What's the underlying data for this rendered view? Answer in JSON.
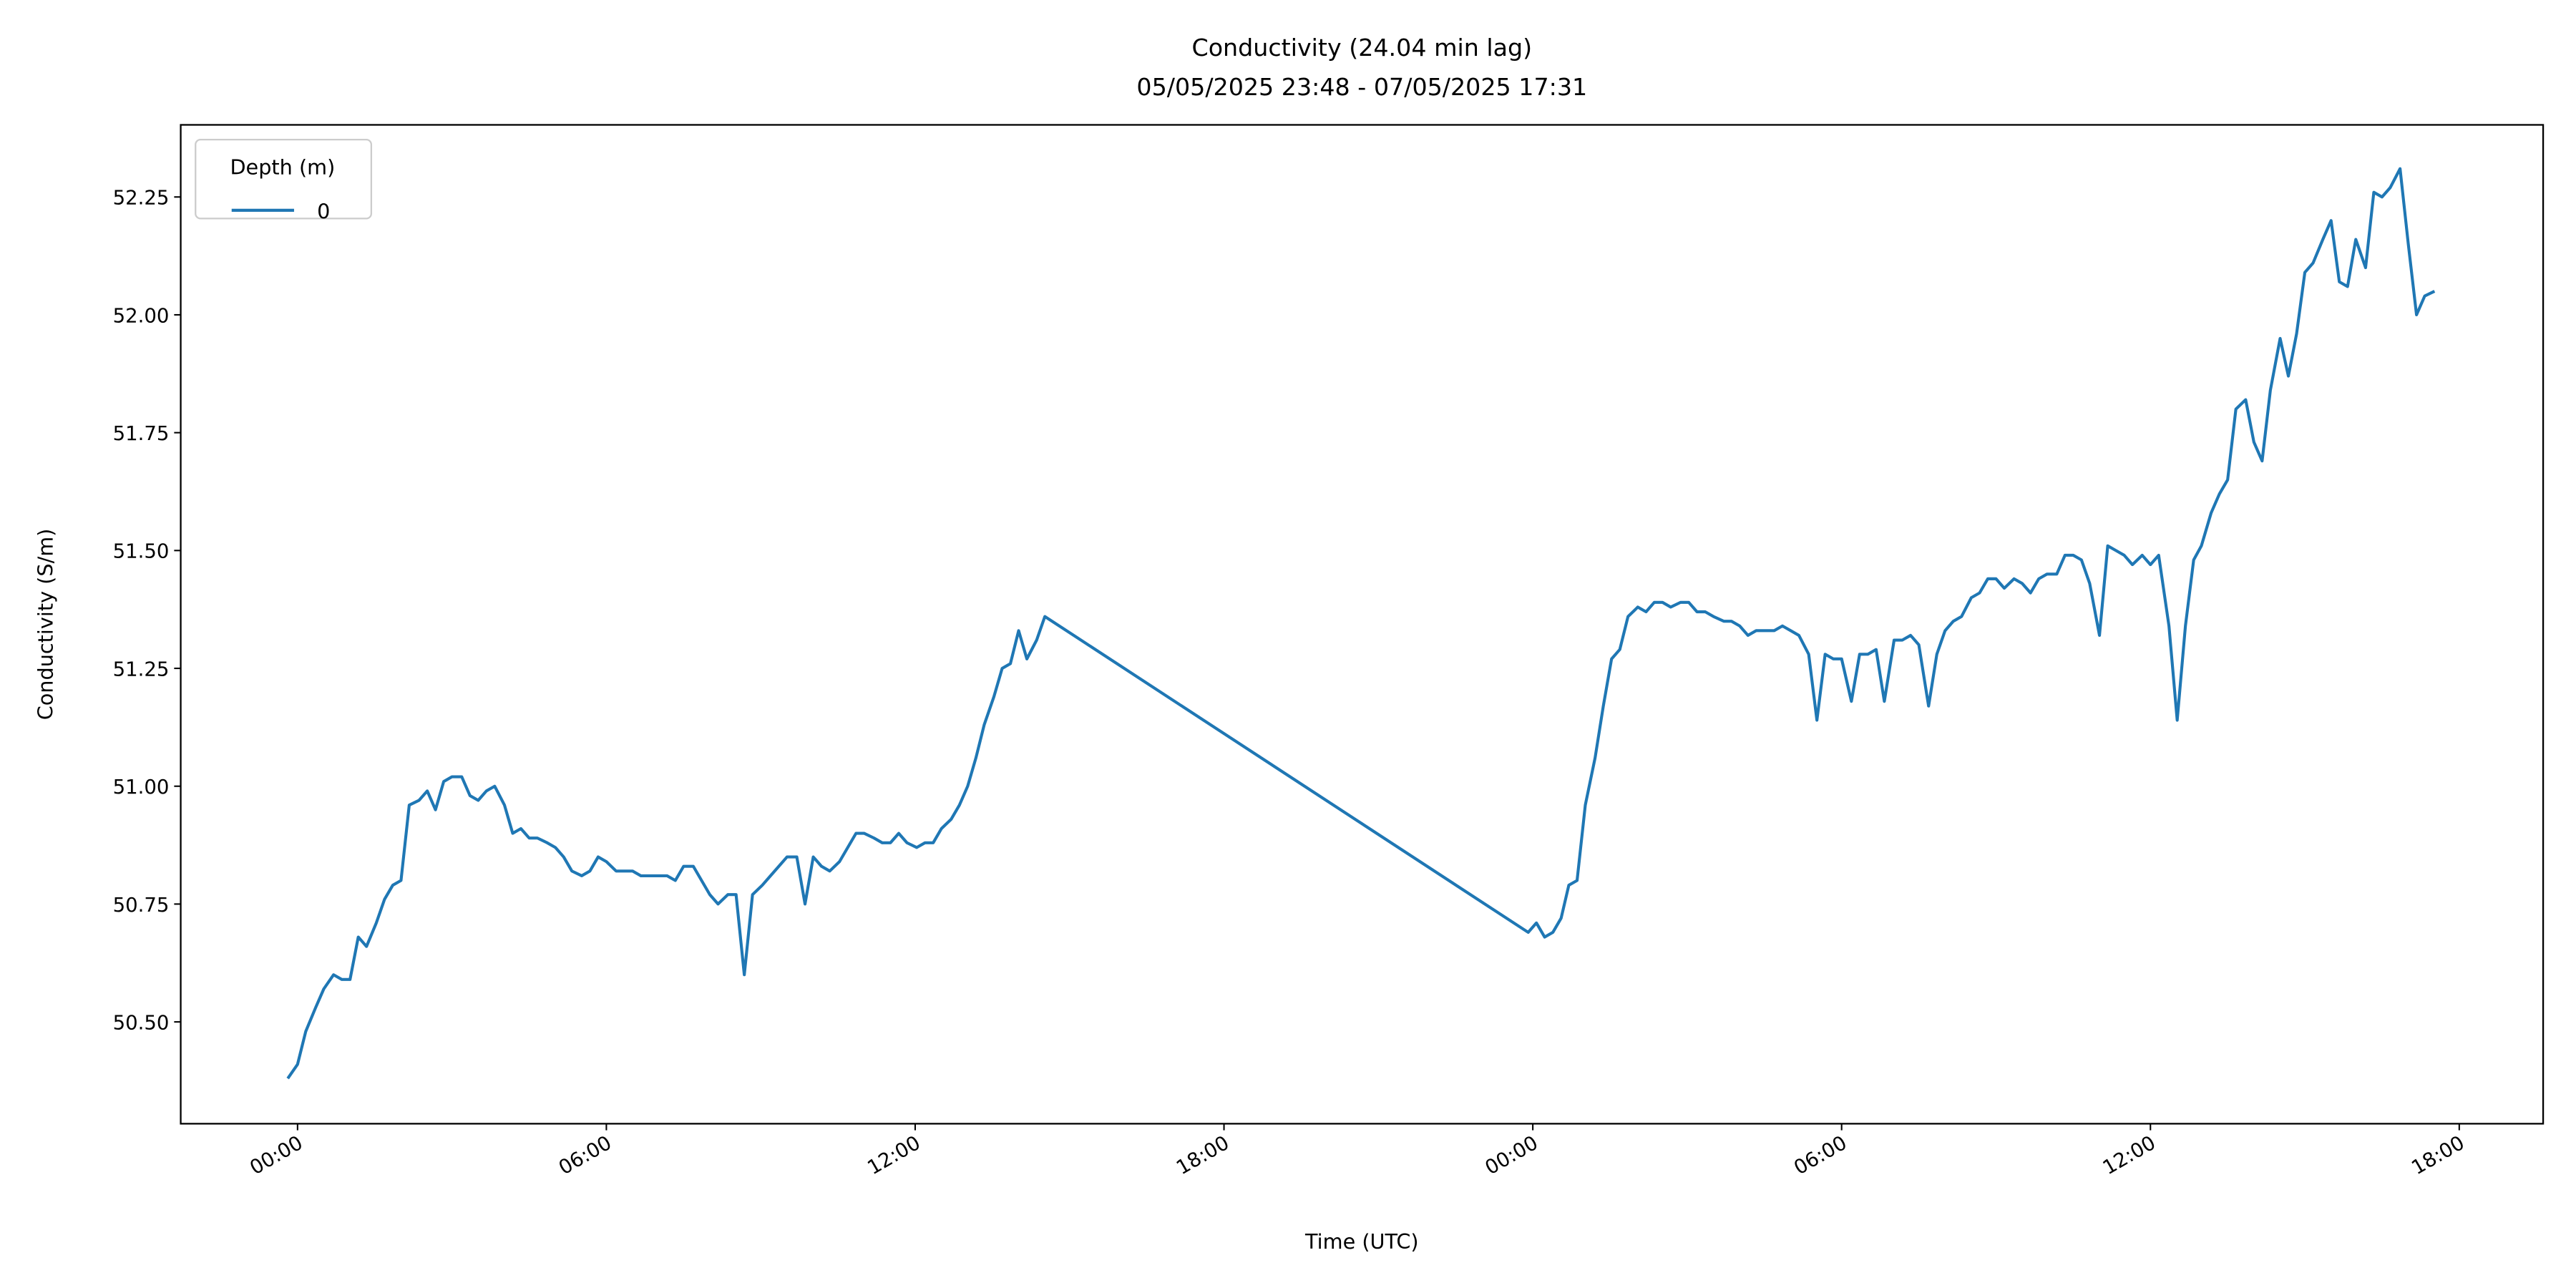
{
  "chart_data": {
    "type": "line",
    "title": "Conductivity (24.04 min lag)",
    "subtitle": "05/05/2025 23:48 - 07/05/2025 17:31",
    "x_label": "Time (UTC)",
    "y_label": "Conductivity (S/m)",
    "legend_title": "Depth (m)",
    "legend": "upper left",
    "grid": false,
    "xlim": [
      -2.27,
      43.63
    ],
    "ylim": [
      50.284,
      52.403
    ],
    "xticks": [
      {
        "value": 0,
        "label": "00:00"
      },
      {
        "value": 6,
        "label": "06:00"
      },
      {
        "value": 12,
        "label": "12:00"
      },
      {
        "value": 18,
        "label": "18:00"
      },
      {
        "value": 24,
        "label": "00:00"
      },
      {
        "value": 30,
        "label": "06:00"
      },
      {
        "value": 36,
        "label": "12:00"
      },
      {
        "value": 42,
        "label": "18:00"
      }
    ],
    "yticks": [
      {
        "value": 50.5,
        "label": "50.50"
      },
      50.75,
      {
        "value": 51,
        "label": "51.00"
      },
      51.25,
      {
        "value": 51.5,
        "label": "51.50"
      },
      51.75,
      {
        "value": 52,
        "label": "52.00"
      },
      52.25
    ],
    "x": [
      -0.19,
      0,
      0.16,
      0.35,
      0.51,
      0.7,
      0.86,
      1.02,
      1.18,
      1.34,
      1.53,
      1.69,
      1.85,
      2.01,
      2.17,
      2.36,
      2.52,
      2.68,
      2.84,
      3,
      3.19,
      3.35,
      3.51,
      3.67,
      3.83,
      4.02,
      4.18,
      4.34,
      4.5,
      4.66,
      4.85,
      5.01,
      5.17,
      5.33,
      5.52,
      5.68,
      5.84,
      6,
      6.19,
      6.35,
      6.51,
      6.67,
      6.83,
      7.02,
      7.18,
      7.34,
      7.5,
      7.69,
      7.85,
      8.01,
      8.17,
      8.36,
      8.52,
      8.68,
      8.84,
      9.03,
      9.19,
      9.35,
      9.51,
      9.7,
      9.86,
      10.02,
      10.18,
      10.34,
      10.53,
      10.69,
      10.85,
      11.01,
      11.2,
      11.36,
      11.52,
      11.68,
      11.84,
      12.03,
      12.19,
      12.35,
      12.51,
      12.7,
      12.86,
      13.02,
      13.18,
      13.34,
      13.53,
      13.69,
      13.85,
      14.01,
      14.17,
      14.36,
      14.52,
      23.91,
      24.07,
      24.23,
      24.39,
      24.55,
      24.7,
      24.86,
      25.02,
      25.21,
      25.37,
      25.53,
      25.69,
      25.85,
      26.04,
      26.2,
      26.36,
      26.52,
      26.68,
      26.87,
      27.03,
      27.19,
      27.35,
      27.51,
      27.71,
      27.86,
      28.02,
      28.18,
      28.34,
      28.53,
      28.69,
      28.85,
      29.01,
      29.17,
      29.36,
      29.52,
      29.68,
      29.84,
      30,
      30.19,
      30.35,
      30.51,
      30.67,
      30.83,
      31.02,
      31.18,
      31.34,
      31.5,
      31.69,
      31.85,
      32.01,
      32.17,
      32.33,
      32.52,
      32.68,
      32.84,
      33,
      33.16,
      33.35,
      33.51,
      33.67,
      33.83,
      33.99,
      34.18,
      34.34,
      34.5,
      34.66,
      34.82,
      35.01,
      35.17,
      35.33,
      35.49,
      35.65,
      35.84,
      36,
      36.16,
      36.36,
      36.52,
      36.68,
      36.84,
      36.99,
      37.18,
      37.34,
      37.5,
      37.66,
      37.85,
      38.01,
      38.17,
      38.33,
      38.52,
      38.68,
      38.84,
      39,
      39.16,
      39.35,
      39.51,
      39.67,
      39.83,
      39.99,
      40.18,
      40.34,
      40.5,
      40.66,
      40.85,
      41.01,
      41.17,
      41.33,
      41.52
    ],
    "series": [
      {
        "name": "0",
        "color": "#1f77b4",
        "values": [
          50.38,
          50.41,
          50.48,
          50.53,
          50.57,
          50.6,
          50.59,
          50.59,
          50.68,
          50.66,
          50.71,
          50.76,
          50.79,
          50.8,
          50.96,
          50.97,
          50.99,
          50.95,
          51.01,
          51.02,
          51.02,
          50.98,
          50.97,
          50.99,
          51,
          50.96,
          50.9,
          50.91,
          50.89,
          50.89,
          50.88,
          50.87,
          50.85,
          50.82,
          50.81,
          50.82,
          50.85,
          50.84,
          50.82,
          50.82,
          50.82,
          50.81,
          50.81,
          50.81,
          50.81,
          50.8,
          50.83,
          50.83,
          50.8,
          50.77,
          50.75,
          50.77,
          50.77,
          50.6,
          50.77,
          50.79,
          50.81,
          50.83,
          50.85,
          50.85,
          50.75,
          50.85,
          50.83,
          50.82,
          50.84,
          50.87,
          50.9,
          50.9,
          50.89,
          50.88,
          50.88,
          50.9,
          50.88,
          50.87,
          50.88,
          50.88,
          50.91,
          50.93,
          50.96,
          51,
          51.06,
          51.13,
          51.19,
          51.25,
          51.26,
          51.33,
          51.27,
          51.31,
          51.36,
          50.69,
          50.71,
          50.68,
          50.69,
          50.72,
          50.79,
          50.8,
          50.96,
          51.06,
          51.17,
          51.27,
          51.29,
          51.36,
          51.38,
          51.37,
          51.39,
          51.39,
          51.38,
          51.39,
          51.39,
          51.37,
          51.37,
          51.36,
          51.35,
          51.35,
          51.34,
          51.32,
          51.33,
          51.33,
          51.33,
          51.34,
          51.33,
          51.32,
          51.28,
          51.14,
          51.28,
          51.27,
          51.27,
          51.18,
          51.28,
          51.28,
          51.29,
          51.18,
          51.31,
          51.31,
          51.32,
          51.3,
          51.17,
          51.28,
          51.33,
          51.35,
          51.36,
          51.4,
          51.41,
          51.44,
          51.44,
          51.42,
          51.44,
          51.43,
          51.41,
          51.44,
          51.45,
          51.45,
          51.49,
          51.49,
          51.48,
          51.43,
          51.32,
          51.51,
          51.5,
          51.49,
          51.47,
          51.49,
          51.47,
          51.49,
          51.34,
          51.14,
          51.34,
          51.48,
          51.51,
          51.58,
          51.62,
          51.65,
          51.8,
          51.82,
          51.73,
          51.69,
          51.84,
          51.95,
          51.87,
          51.96,
          52.09,
          52.11,
          52.16,
          52.2,
          52.07,
          52.06,
          52.16,
          52.1,
          52.26,
          52.25,
          52.27,
          52.31,
          52.15,
          52,
          52.04,
          52.05
        ]
      }
    ]
  }
}
